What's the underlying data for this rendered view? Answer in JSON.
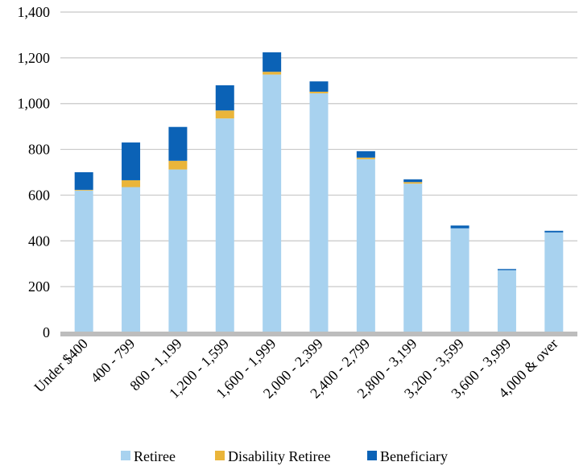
{
  "chart_data": {
    "type": "bar",
    "stacked": true,
    "categories": [
      "Under $400",
      "400 - 799",
      "800 - 1,199",
      "1,200 - 1,599",
      "1,600 - 1,999",
      "2,000 - 2,399",
      "2,400 - 2,799",
      "2,800 - 3,199",
      "3,200 - 3,599",
      "3,600 - 3,999",
      "4,000 & over"
    ],
    "series": [
      {
        "name": "Retiree",
        "color": "#a8d2ef",
        "values": [
          620,
          635,
          712,
          935,
          1127,
          1045,
          757,
          650,
          455,
          272,
          437
        ]
      },
      {
        "name": "Disability Retiree",
        "color": "#eab53a",
        "values": [
          3,
          30,
          38,
          35,
          12,
          7,
          7,
          7,
          0,
          0,
          0
        ]
      },
      {
        "name": "Beneficiary",
        "color": "#0b62b6",
        "values": [
          77,
          165,
          148,
          110,
          85,
          45,
          28,
          12,
          12,
          5,
          7
        ]
      }
    ],
    "ylim": [
      0,
      1400
    ],
    "yticks": [
      "0",
      "200",
      "400",
      "600",
      "800",
      "1,000",
      "1,200",
      "1,400"
    ],
    "ytick_values": [
      0,
      200,
      400,
      600,
      800,
      1000,
      1200,
      1400
    ],
    "grid": true,
    "legend_position": "bottom",
    "title": "",
    "xlabel": "",
    "ylabel": ""
  }
}
